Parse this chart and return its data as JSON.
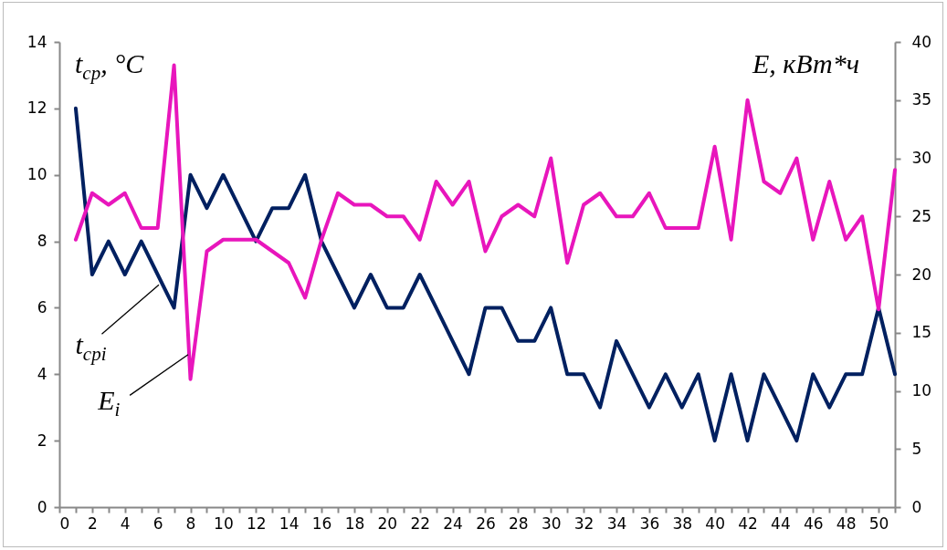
{
  "chart_data": {
    "type": "line",
    "ylabel": "t$_{cp}$, °C",
    "y2label": "E, кВт*ч",
    "x": [
      1,
      2,
      3,
      4,
      5,
      6,
      7,
      8,
      9,
      10,
      11,
      12,
      13,
      14,
      15,
      16,
      17,
      18,
      19,
      20,
      21,
      22,
      23,
      24,
      25,
      26,
      27,
      28,
      29,
      30,
      31,
      32,
      33,
      34,
      35,
      36,
      37,
      38,
      39,
      40,
      41,
      42,
      43,
      44,
      45,
      46,
      47,
      48,
      49,
      50,
      51
    ],
    "series": [
      {
        "name": "t$_{cpi}$",
        "color": "#002060",
        "values": [
          12,
          7,
          8,
          7,
          8,
          7,
          6,
          10,
          9,
          10,
          9,
          8,
          9,
          9,
          10,
          8,
          7,
          6,
          7,
          6,
          6,
          7,
          6,
          5,
          4,
          6,
          6,
          5,
          5,
          6,
          4,
          4,
          3,
          5,
          4,
          3,
          4,
          3,
          4,
          2,
          4,
          2,
          4,
          3,
          2,
          4,
          3,
          4,
          4,
          6,
          4
        ]
      },
      {
        "name": "E$_{i}$",
        "color": "#e816bc",
        "axis": "y2",
        "values": [
          23,
          27,
          26,
          27,
          24,
          24,
          38,
          11,
          22,
          23,
          23,
          23,
          22,
          21,
          18,
          23,
          27,
          26,
          26,
          25,
          25,
          23,
          28,
          26,
          28,
          22,
          25,
          26,
          25,
          30,
          21,
          26,
          27,
          25,
          25,
          27,
          24,
          24,
          24,
          31,
          23,
          35,
          28,
          27,
          30,
          23,
          28,
          23,
          25,
          17,
          29
        ]
      }
    ],
    "xlim": [
      0,
      51
    ],
    "xticks": [
      0,
      {
        "value": 1,
        "label": null
      },
      2,
      {
        "value": 3,
        "label": null
      },
      4,
      {
        "value": 5,
        "label": null
      },
      6,
      {
        "value": 7,
        "label": null
      },
      8,
      {
        "value": 9,
        "label": null
      },
      10,
      {
        "value": 11,
        "label": null
      },
      12,
      {
        "value": 13,
        "label": null
      },
      14,
      {
        "value": 15,
        "label": null
      },
      16,
      {
        "value": 17,
        "label": null
      },
      18,
      {
        "value": 19,
        "label": null
      },
      20,
      {
        "value": 21,
        "label": null
      },
      22,
      {
        "value": 23,
        "label": null
      },
      24,
      {
        "value": 25,
        "label": null
      },
      26,
      {
        "value": 27,
        "label": null
      },
      28,
      {
        "value": 29,
        "label": null
      },
      30,
      {
        "value": 31,
        "label": null
      },
      32,
      {
        "value": 33,
        "label": null
      },
      34,
      {
        "value": 35,
        "label": null
      },
      36,
      {
        "value": 37,
        "label": null
      },
      38,
      {
        "value": 39,
        "label": null
      },
      40,
      {
        "value": 41,
        "label": null
      },
      42,
      {
        "value": 43,
        "label": null
      },
      44,
      {
        "value": 45,
        "label": null
      },
      46,
      {
        "value": 47,
        "label": null
      },
      48,
      {
        "value": 49,
        "label": null
      },
      50,
      {
        "value": 51,
        "label": null
      }
    ],
    "ylim": [
      0,
      14
    ],
    "yticks": [
      0,
      2,
      4,
      6,
      8,
      10,
      12,
      14
    ],
    "y2lim": [
      0,
      40
    ],
    "y2ticks": [
      0,
      5,
      10,
      15,
      20,
      25,
      30,
      35,
      40
    ],
    "grid": false
  }
}
